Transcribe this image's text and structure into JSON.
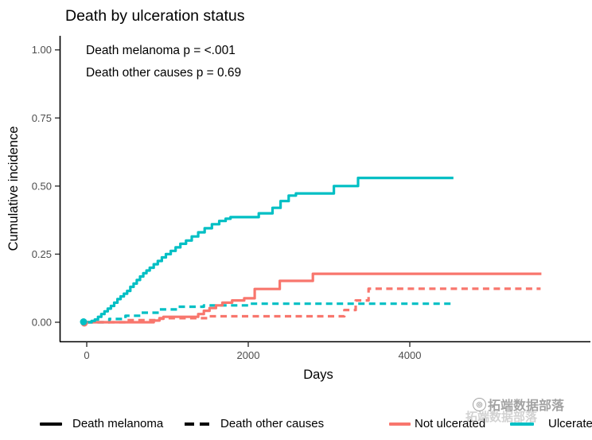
{
  "title": "Death by ulceration status",
  "annotations": {
    "line1": "Death melanoma p = <.001",
    "line2": "Death other causes p = 0.69"
  },
  "colors": {
    "ulcerated": "#00BFC4",
    "not_ulcerated": "#F8766D",
    "axis_line": "#000000",
    "tick_label": "#4D4D4D",
    "watermark": "#8C8C8C"
  },
  "chart_data": {
    "type": "line",
    "subtype": "step-function cumulative incidence (competing risks)",
    "title": "Death by ulceration status",
    "xlabel": "Days",
    "ylabel": "Cumulative incidence",
    "xlim": [
      -335,
      6230
    ],
    "ylim": [
      0,
      1.05
    ],
    "grid": false,
    "legend_position": "bottom",
    "x_ticks": [
      {
        "label": "0",
        "value": 0
      },
      {
        "label": "2000",
        "value": 2000
      },
      {
        "label": "4000",
        "value": 4000
      }
    ],
    "y_ticks": [
      {
        "label": "0.00",
        "value": 0
      },
      {
        "label": "0.25",
        "value": 0.25
      },
      {
        "label": "0.50",
        "value": 0.5
      },
      {
        "label": "0.75",
        "value": 0.75
      },
      {
        "label": "1.00",
        "value": 1.0
      }
    ],
    "series": [
      {
        "name": "Not ulcerated - Death other causes",
        "color": "#F8766D",
        "linetype": "dashed",
        "points": [
          [
            0,
            0
          ],
          [
            480,
            0.008
          ],
          [
            900,
            0.015
          ],
          [
            1500,
            0.022
          ],
          [
            3190,
            0.045
          ],
          [
            3330,
            0.08
          ],
          [
            3490,
            0.123
          ],
          [
            5620,
            0.123
          ]
        ]
      },
      {
        "name": "Ulcerated - Death other causes",
        "color": "#00BFC4",
        "linetype": "dashed",
        "points": [
          [
            0,
            0
          ],
          [
            280,
            0.012
          ],
          [
            480,
            0.024
          ],
          [
            680,
            0.035
          ],
          [
            900,
            0.047
          ],
          [
            1120,
            0.057
          ],
          [
            1450,
            0.062
          ],
          [
            2000,
            0.068
          ],
          [
            4520,
            0.068
          ]
        ]
      },
      {
        "name": "Not ulcerated - Death melanoma",
        "color": "#F8766D",
        "linetype": "solid",
        "points": [
          [
            0,
            0
          ],
          [
            830,
            0.006
          ],
          [
            900,
            0.013
          ],
          [
            950,
            0.02
          ],
          [
            1380,
            0.03
          ],
          [
            1450,
            0.042
          ],
          [
            1520,
            0.052
          ],
          [
            1600,
            0.062
          ],
          [
            1680,
            0.072
          ],
          [
            1800,
            0.08
          ],
          [
            1950,
            0.088
          ],
          [
            2080,
            0.122
          ],
          [
            2390,
            0.152
          ],
          [
            2800,
            0.178
          ],
          [
            5630,
            0.178
          ]
        ]
      },
      {
        "name": "Ulcerated - Death melanoma",
        "color": "#00BFC4",
        "linetype": "solid",
        "points": [
          [
            0,
            0
          ],
          [
            60,
            0.005
          ],
          [
            100,
            0.01
          ],
          [
            140,
            0.02
          ],
          [
            180,
            0.03
          ],
          [
            220,
            0.04
          ],
          [
            260,
            0.05
          ],
          [
            300,
            0.06
          ],
          [
            340,
            0.072
          ],
          [
            380,
            0.085
          ],
          [
            420,
            0.095
          ],
          [
            460,
            0.105
          ],
          [
            500,
            0.115
          ],
          [
            540,
            0.13
          ],
          [
            580,
            0.142
          ],
          [
            620,
            0.155
          ],
          [
            660,
            0.168
          ],
          [
            700,
            0.18
          ],
          [
            740,
            0.19
          ],
          [
            780,
            0.2
          ],
          [
            830,
            0.213
          ],
          [
            880,
            0.225
          ],
          [
            930,
            0.238
          ],
          [
            980,
            0.25
          ],
          [
            1040,
            0.262
          ],
          [
            1100,
            0.275
          ],
          [
            1160,
            0.288
          ],
          [
            1230,
            0.3
          ],
          [
            1300,
            0.315
          ],
          [
            1380,
            0.33
          ],
          [
            1460,
            0.345
          ],
          [
            1550,
            0.36
          ],
          [
            1640,
            0.372
          ],
          [
            1720,
            0.38
          ],
          [
            1780,
            0.386
          ],
          [
            2130,
            0.4
          ],
          [
            2300,
            0.42
          ],
          [
            2400,
            0.445
          ],
          [
            2500,
            0.465
          ],
          [
            2590,
            0.473
          ],
          [
            3060,
            0.5
          ],
          [
            3360,
            0.53
          ],
          [
            4540,
            0.53
          ]
        ]
      }
    ]
  },
  "legend": {
    "linetype_items": [
      {
        "label": "Death melanoma",
        "style": "solid"
      },
      {
        "label": "Death other causes",
        "style": "dashed"
      }
    ],
    "color_items": [
      {
        "label": "Not ulcerated",
        "color": "#F8766D"
      },
      {
        "label": "Ulcerated",
        "color": "#00BFC4"
      }
    ]
  },
  "watermark": {
    "text": "拓端数据部落",
    "logo": "tecdat-logo"
  }
}
